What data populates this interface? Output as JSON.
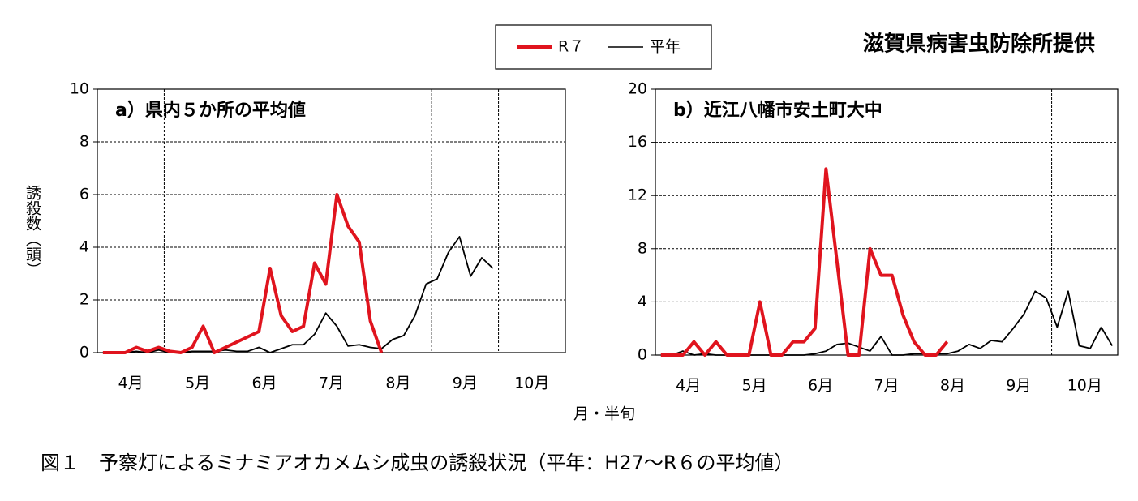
{
  "source": "滋賀県病害虫防除所提供",
  "xlabel": "月・半旬",
  "ylabel": "誘殺数（頭）",
  "caption": "図１　予察灯によるミナミアオカメムシ成虫の誘殺状況（平年：H27～R６の平均値）",
  "chart_data": [
    {
      "type": "line",
      "title": "a）県内５か所の平均値",
      "x": [
        1,
        2,
        3,
        4,
        5,
        6,
        7,
        8,
        9,
        10,
        11,
        12,
        13,
        14,
        15,
        16,
        17,
        18,
        19,
        20,
        21,
        22,
        23,
        24,
        25,
        26,
        27,
        28,
        29,
        30,
        31,
        32,
        33,
        34,
        35,
        36,
        37,
        38,
        39,
        40,
        41,
        42
      ],
      "xlim": [
        0.5,
        42.5
      ],
      "xticks": [
        {
          "value": 3.5,
          "label": "4月"
        },
        {
          "value": 9.5,
          "label": "5月"
        },
        {
          "value": 15.5,
          "label": "6月"
        },
        {
          "value": 21.5,
          "label": "7月"
        },
        {
          "value": 27.5,
          "label": "8月"
        },
        {
          "value": 33.5,
          "label": "9月"
        },
        {
          "value": 39.5,
          "label": "10月"
        }
      ],
      "xgrid": [
        6.5,
        30.5,
        36.5
      ],
      "ylim": [
        0,
        10
      ],
      "yticks": [
        0,
        2,
        4,
        6,
        8,
        10
      ],
      "grid": true,
      "series": [
        {
          "name": "R７",
          "color": "#e0141e",
          "values": [
            0,
            0,
            0,
            0.2,
            0.05,
            0.2,
            0.05,
            0,
            0.2,
            1.0,
            0,
            0.2,
            0.4,
            0.6,
            0.8,
            3.2,
            1.4,
            0.8,
            1.0,
            3.4,
            2.6,
            6.0,
            4.8,
            4.2,
            1.2,
            0,
            null,
            null,
            null,
            null,
            null,
            null,
            null,
            null,
            null,
            null,
            null,
            null,
            null,
            null,
            null,
            null
          ]
        },
        {
          "name": "平年",
          "color": "#000000",
          "values": [
            0,
            0,
            0,
            0.05,
            0,
            0.1,
            0,
            0,
            0.05,
            0.05,
            0.05,
            0.1,
            0.05,
            0.05,
            0.2,
            0,
            0.15,
            0.3,
            0.3,
            0.7,
            1.5,
            1.0,
            0.25,
            0.3,
            0.2,
            0.15,
            0.5,
            0.65,
            1.4,
            2.6,
            2.8,
            3.8,
            4.4,
            2.9,
            3.6,
            3.2,
            null,
            null,
            null,
            null,
            null,
            null
          ]
        }
      ]
    },
    {
      "type": "line",
      "title": "b）近江八幡市安土町大中",
      "x": [
        1,
        2,
        3,
        4,
        5,
        6,
        7,
        8,
        9,
        10,
        11,
        12,
        13,
        14,
        15,
        16,
        17,
        18,
        19,
        20,
        21,
        22,
        23,
        24,
        25,
        26,
        27,
        28,
        29,
        30,
        31,
        32,
        33,
        34,
        35,
        36,
        37,
        38,
        39,
        40,
        41,
        42
      ],
      "xlim": [
        0.5,
        42.5
      ],
      "xticks": [
        {
          "value": 3.5,
          "label": "4月"
        },
        {
          "value": 9.5,
          "label": "5月"
        },
        {
          "value": 15.5,
          "label": "6月"
        },
        {
          "value": 21.5,
          "label": "7月"
        },
        {
          "value": 27.5,
          "label": "8月"
        },
        {
          "value": 33.5,
          "label": "9月"
        },
        {
          "value": 39.5,
          "label": "10月"
        }
      ],
      "xgrid": [
        36.5
      ],
      "ylim": [
        0,
        20
      ],
      "yticks": [
        0,
        4,
        8,
        12,
        16,
        20
      ],
      "grid": true,
      "series": [
        {
          "color": "#e0141e",
          "values": [
            0,
            0,
            0,
            1,
            0,
            1,
            0,
            0,
            0,
            4,
            0,
            0,
            1,
            1,
            2,
            14,
            7,
            0,
            0,
            8,
            6,
            6,
            3,
            1,
            0,
            0,
            1,
            null,
            null,
            null,
            null,
            null,
            null,
            null,
            null,
            null,
            null,
            null,
            null,
            null,
            null,
            null
          ]
        },
        {
          "color": "#000000",
          "values": [
            0,
            0,
            0.3,
            0,
            0.1,
            0,
            0,
            0,
            0,
            0,
            0,
            0,
            0,
            0,
            0.1,
            0.3,
            0.8,
            0.9,
            0.6,
            0.3,
            1.4,
            0,
            0,
            0.1,
            0.1,
            0.1,
            0.1,
            0.3,
            0.8,
            0.5,
            1.1,
            1.0,
            2.0,
            3.1,
            4.8,
            4.3,
            2.1,
            4.8,
            0.7,
            0.5,
            2.1,
            0.7
          ]
        }
      ]
    }
  ]
}
